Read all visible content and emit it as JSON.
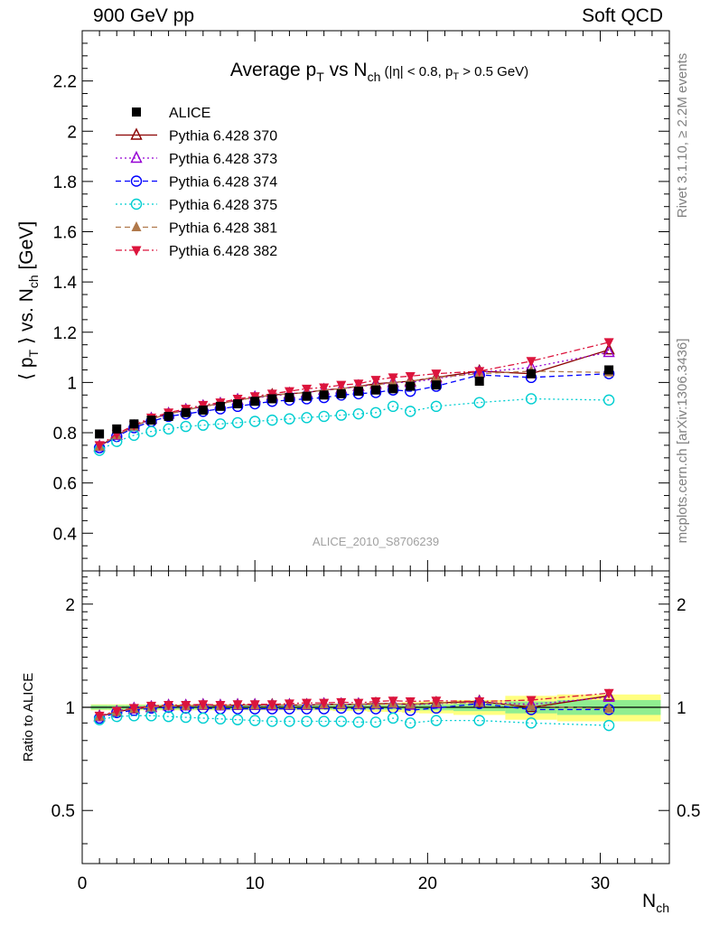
{
  "header": {
    "left": "900 GeV pp",
    "right": "Soft QCD"
  },
  "side_labels": {
    "rivet": "Rivet 3.1.10, ≥ 2.2M events",
    "mcplots": "mcplots.cern.ch [arXiv:1306.3436]"
  },
  "colors": {
    "ALICE": "#000000",
    "p370": "#8b0000",
    "p373": "#9400d3",
    "p374": "#0000ff",
    "p375": "#00ced1",
    "p381": "#b0784a",
    "p382": "#dc143c",
    "band_inner": "#90ee90",
    "band_outer": "#ffff80"
  },
  "chart_data": [
    {
      "type": "scatter",
      "panel": "main",
      "title": {
        "main": "Average p",
        "sub1": "T",
        "mid": " vs N",
        "sub2": "ch",
        "small_a": " (|η| < 0.8, p",
        "small_sub": "T",
        "small_b": " > 0.5 GeV)"
      },
      "ylabel": {
        "a": "⟨ p",
        "sub1": "T",
        "b": " ⟩ vs. N",
        "sub2": "ch",
        "c": " [GeV]"
      },
      "watermark": "ALICE_2010_S8706239",
      "xlim": [
        0,
        34
      ],
      "ylim": [
        0.25,
        2.4
      ],
      "yticks": [
        "0.4",
        "0.6",
        "0.8",
        "1",
        "1.2",
        "1.4",
        "1.6",
        "1.8",
        "2",
        "2.2"
      ],
      "legend_position": "top-left",
      "x": [
        1,
        2,
        3,
        4,
        5,
        6,
        7,
        8,
        9,
        10,
        11,
        12,
        13,
        14,
        15,
        16,
        17,
        18,
        19,
        20.5,
        23,
        26,
        30.5
      ],
      "series": [
        {
          "name": "ALICE",
          "key": "ALICE",
          "marker": "square",
          "line": "none",
          "values": [
            0.795,
            0.815,
            0.835,
            0.85,
            0.865,
            0.88,
            0.89,
            0.905,
            0.915,
            0.925,
            0.935,
            0.94,
            0.945,
            0.95,
            0.955,
            0.965,
            0.97,
            0.975,
            0.985,
            0.99,
            1.005,
            1.035,
            1.05
          ]
        },
        {
          "name": "Pythia 6.428 370",
          "key": "p370",
          "marker": "triangle-up-open",
          "line": "solid",
          "values": [
            0.745,
            0.79,
            0.825,
            0.855,
            0.875,
            0.89,
            0.905,
            0.915,
            0.93,
            0.94,
            0.95,
            0.955,
            0.96,
            0.97,
            0.975,
            0.985,
            0.995,
            1.0,
            1.005,
            1.02,
            1.045,
            1.035,
            1.13
          ]
        },
        {
          "name": "Pythia 6.428 373",
          "key": "p373",
          "marker": "triangle-up-open",
          "line": "dotted",
          "values": [
            0.745,
            0.79,
            0.825,
            0.855,
            0.875,
            0.89,
            0.905,
            0.915,
            0.93,
            0.94,
            0.945,
            0.955,
            0.96,
            0.97,
            0.975,
            0.985,
            0.99,
            1.0,
            1.0,
            1.015,
            1.04,
            1.06,
            1.12
          ]
        },
        {
          "name": "Pythia 6.428 374",
          "key": "p374",
          "marker": "circle-open",
          "line": "dashed",
          "values": [
            0.74,
            0.785,
            0.82,
            0.845,
            0.865,
            0.875,
            0.885,
            0.895,
            0.905,
            0.915,
            0.925,
            0.93,
            0.935,
            0.94,
            0.95,
            0.955,
            0.96,
            0.97,
            0.965,
            0.985,
            1.03,
            1.02,
            1.035
          ]
        },
        {
          "name": "Pythia 6.428 375",
          "key": "p375",
          "marker": "circle-open",
          "line": "dotted",
          "values": [
            0.73,
            0.765,
            0.79,
            0.805,
            0.815,
            0.825,
            0.83,
            0.835,
            0.84,
            0.845,
            0.85,
            0.855,
            0.86,
            0.865,
            0.87,
            0.875,
            0.88,
            0.905,
            0.885,
            0.905,
            0.92,
            0.935,
            0.93
          ]
        },
        {
          "name": "Pythia 6.428 381",
          "key": "p381",
          "marker": "triangle-up",
          "line": "dashed",
          "values": [
            0.745,
            0.79,
            0.825,
            0.855,
            0.875,
            0.89,
            0.905,
            0.915,
            0.93,
            0.94,
            0.95,
            0.955,
            0.96,
            0.97,
            0.975,
            0.985,
            0.99,
            1.0,
            1.005,
            1.02,
            1.035,
            1.045,
            1.04
          ]
        },
        {
          "name": "Pythia 6.428 382",
          "key": "p382",
          "marker": "triangle-down",
          "line": "dashdot",
          "values": [
            0.75,
            0.795,
            0.83,
            0.86,
            0.88,
            0.895,
            0.91,
            0.92,
            0.935,
            0.945,
            0.955,
            0.965,
            0.975,
            0.98,
            0.99,
            0.995,
            1.01,
            1.02,
            1.025,
            1.035,
            1.045,
            1.085,
            1.16
          ]
        }
      ]
    },
    {
      "type": "scatter",
      "panel": "ratio",
      "ylabel": "Ratio to ALICE",
      "xlabel": {
        "a": "N",
        "sub": "ch"
      },
      "xlim": [
        0,
        34
      ],
      "xticks": [
        "0",
        "10",
        "20",
        "30"
      ],
      "ylim": [
        0.35,
        2.5
      ],
      "ylog": true,
      "yticks": [
        "0.5",
        "1",
        "2"
      ],
      "reference_line": 1,
      "band_edges": [
        0.5,
        1.5,
        2.5,
        3.5,
        4.5,
        5.5,
        6.5,
        7.5,
        8.5,
        9.5,
        10.5,
        11.5,
        12.5,
        13.5,
        14.5,
        15.5,
        16.5,
        17.5,
        18.5,
        19.5,
        21.5,
        24.5,
        27.5,
        33.5
      ],
      "band_inner_halfwidth": [
        0.015,
        0.015,
        0.015,
        0.015,
        0.015,
        0.015,
        0.015,
        0.015,
        0.015,
        0.015,
        0.015,
        0.015,
        0.015,
        0.015,
        0.015,
        0.015,
        0.015,
        0.015,
        0.015,
        0.02,
        0.025,
        0.04,
        0.05
      ],
      "band_outer_halfwidth": [
        0.02,
        0.02,
        0.02,
        0.02,
        0.02,
        0.02,
        0.02,
        0.02,
        0.02,
        0.02,
        0.02,
        0.02,
        0.02,
        0.02,
        0.025,
        0.025,
        0.03,
        0.03,
        0.035,
        0.04,
        0.05,
        0.08,
        0.09
      ],
      "x": [
        1,
        2,
        3,
        4,
        5,
        6,
        7,
        8,
        9,
        10,
        11,
        12,
        13,
        14,
        15,
        16,
        17,
        18,
        19,
        20.5,
        23,
        26,
        30.5
      ],
      "series": [
        {
          "key": "p370",
          "marker": "triangle-up-open",
          "line": "solid",
          "values": [
            0.94,
            0.97,
            0.99,
            1.0,
            1.01,
            1.01,
            1.015,
            1.01,
            1.015,
            1.015,
            1.015,
            1.015,
            1.015,
            1.02,
            1.02,
            1.02,
            1.025,
            1.025,
            1.02,
            1.03,
            1.04,
            1.0,
            1.08
          ]
        },
        {
          "key": "p373",
          "marker": "triangle-up-open",
          "line": "dotted",
          "values": [
            0.94,
            0.97,
            0.99,
            1.0,
            1.01,
            1.01,
            1.015,
            1.01,
            1.015,
            1.015,
            1.01,
            1.015,
            1.015,
            1.02,
            1.02,
            1.02,
            1.02,
            1.025,
            1.015,
            1.025,
            1.035,
            1.02,
            1.07
          ]
        },
        {
          "key": "p374",
          "marker": "circle-open",
          "line": "dashed",
          "values": [
            0.93,
            0.965,
            0.98,
            0.995,
            1.0,
            0.995,
            0.995,
            0.99,
            0.99,
            0.99,
            0.99,
            0.99,
            0.99,
            0.99,
            0.995,
            0.99,
            0.99,
            0.995,
            0.98,
            0.995,
            1.025,
            0.985,
            0.985
          ]
        },
        {
          "key": "p375",
          "marker": "circle-open",
          "line": "dotted",
          "values": [
            0.92,
            0.94,
            0.945,
            0.945,
            0.94,
            0.935,
            0.93,
            0.925,
            0.92,
            0.915,
            0.91,
            0.91,
            0.91,
            0.91,
            0.91,
            0.905,
            0.905,
            0.93,
            0.9,
            0.915,
            0.915,
            0.9,
            0.885
          ]
        },
        {
          "key": "p381",
          "marker": "triangle-up",
          "line": "dashed",
          "values": [
            0.94,
            0.97,
            0.99,
            1.0,
            1.01,
            1.01,
            1.015,
            1.01,
            1.015,
            1.015,
            1.015,
            1.015,
            1.015,
            1.02,
            1.02,
            1.02,
            1.02,
            1.025,
            1.02,
            1.03,
            1.03,
            1.01,
            0.99
          ]
        },
        {
          "key": "p382",
          "marker": "triangle-down",
          "line": "dashdot",
          "values": [
            0.945,
            0.975,
            0.995,
            1.01,
            1.015,
            1.015,
            1.02,
            1.015,
            1.02,
            1.02,
            1.02,
            1.025,
            1.03,
            1.03,
            1.035,
            1.03,
            1.04,
            1.045,
            1.04,
            1.045,
            1.04,
            1.05,
            1.1
          ]
        }
      ]
    }
  ]
}
